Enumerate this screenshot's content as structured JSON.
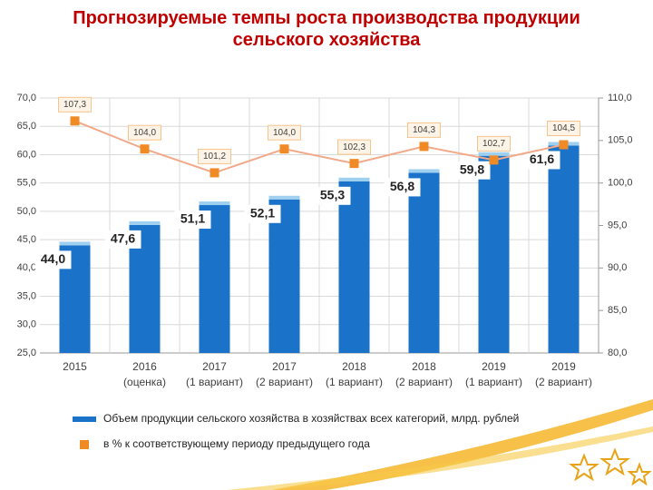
{
  "chart_data": {
    "type": "bar_line",
    "title": "Прогнозируемые темпы роста производства продукции сельского хозяйства",
    "categories": [
      [
        "2015"
      ],
      [
        "2016",
        "(оценка)"
      ],
      [
        "2017",
        "(1 вариант)"
      ],
      [
        "2017",
        "(2 вариант)"
      ],
      [
        "2018",
        "(1 вариант)"
      ],
      [
        "2018",
        "(2 вариант)"
      ],
      [
        "2019",
        "(1 вариант)"
      ],
      [
        "2019",
        "(2 вариант)"
      ]
    ],
    "series": [
      {
        "name": "Объем продукции сельского хозяйства в хозяйствах всех категорий, млрд. рублей",
        "color": "#1a73c9",
        "values": [
          44.0,
          47.6,
          51.1,
          52.1,
          55.3,
          56.8,
          59.8,
          61.6
        ],
        "value_labels": [
          "44,0",
          "47,6",
          "51,1",
          "52,1",
          "55,3",
          "56,8",
          "59,8",
          "61,6"
        ]
      },
      {
        "name": "в % к соответствующему периоду предыдущего года",
        "color": "#f08a24",
        "axis": "y2",
        "values": [
          107.3,
          104.0,
          101.2,
          104.0,
          102.3,
          104.3,
          102.7,
          104.5
        ],
        "value_labels": [
          "107,3",
          "104,0",
          "101,2",
          "104,0",
          "102,3",
          "104,3",
          "102,7",
          "104,5"
        ]
      }
    ],
    "ylim": [
      25,
      70
    ],
    "yticks": [
      {
        "value": 25,
        "label": "25,0"
      },
      {
        "value": 30,
        "label": "30,0"
      },
      {
        "value": 35,
        "label": "35,0"
      },
      {
        "value": 40,
        "label": "40,0"
      },
      {
        "value": 45,
        "label": "45,0"
      },
      {
        "value": 50,
        "label": "50,0"
      },
      {
        "value": 55,
        "label": "55,0"
      },
      {
        "value": 60,
        "label": "60,0"
      },
      {
        "value": 65,
        "label": "65,0"
      },
      {
        "value": 70,
        "label": "70,0"
      }
    ],
    "y2lim": [
      80,
      110
    ],
    "y2ticks": [
      {
        "value": 80,
        "label": "80,0"
      },
      {
        "value": 85,
        "label": "85,0"
      },
      {
        "value": 90,
        "label": "90,0"
      },
      {
        "value": 95,
        "label": "95,0"
      },
      {
        "value": 100,
        "label": "100,0"
      },
      {
        "value": 105,
        "label": "105,0"
      },
      {
        "value": 110,
        "label": "110,0"
      }
    ],
    "grid": true
  }
}
